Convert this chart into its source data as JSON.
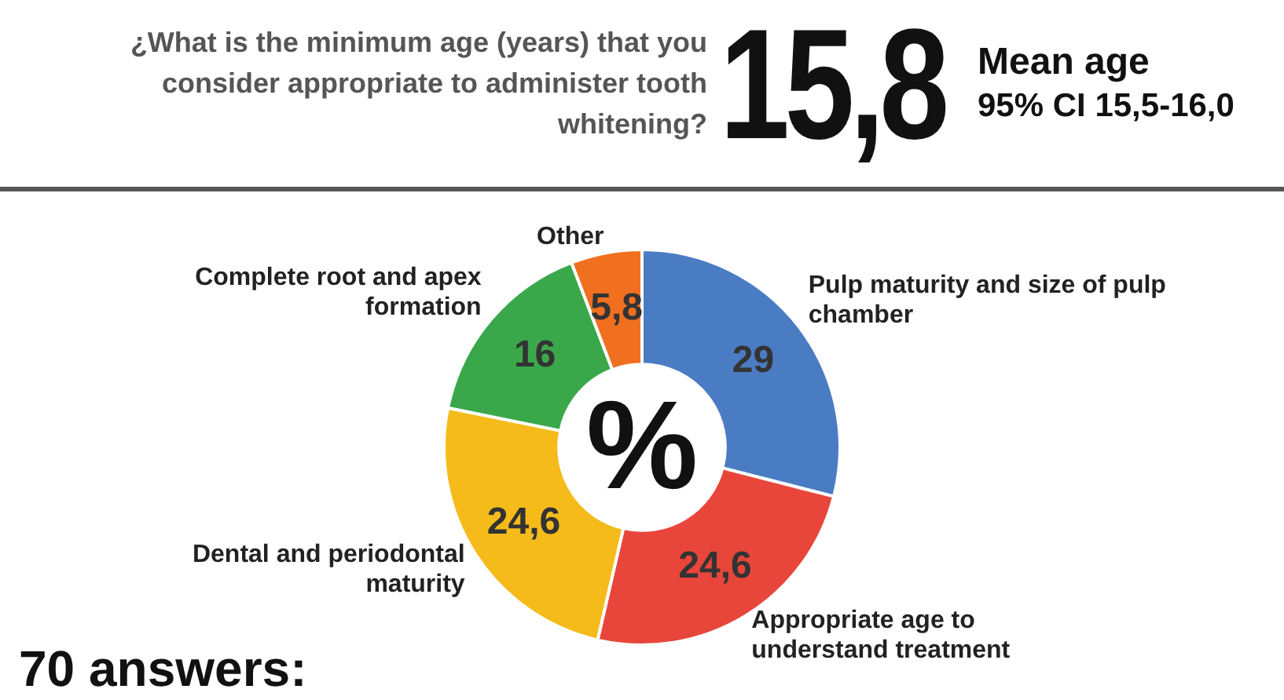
{
  "chart_data": {
    "type": "donut",
    "title": "¿What is the minimum age (years) that you consider appropriate to administer tooth whitening?",
    "categories": [
      "Pulp maturity and size of pulp chamber",
      "Appropriate age to understand treatment",
      "Dental and periodontal maturity",
      "Complete root and apex formation",
      "Other"
    ],
    "values": [
      29,
      24.6,
      24.6,
      16,
      5.8
    ],
    "colors": [
      "#4a7cc4",
      "#e8463a",
      "#f5bb1a",
      "#3aa84a",
      "#f07020"
    ],
    "value_labels": [
      "29",
      "24,6",
      "24,6",
      "16",
      "5,8"
    ],
    "annotations": [
      "15,8",
      "Mean age",
      "95% CI 15,5-16,0",
      "%",
      "70 answers:"
    ],
    "legend": false
  }
}
